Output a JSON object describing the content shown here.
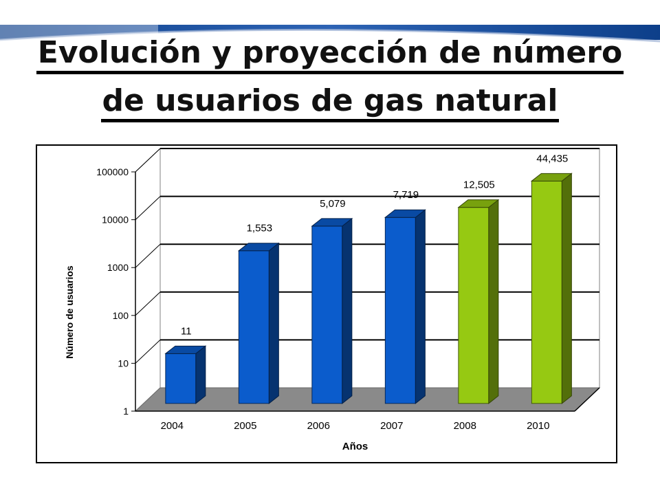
{
  "slide": {
    "title_line1": "Evolución y proyección de número",
    "title_line2": "de usuarios de gas natural"
  },
  "chart_data": {
    "type": "bar",
    "title": "",
    "categories": [
      "2004",
      "2005",
      "2006",
      "2007",
      "2008",
      "2010"
    ],
    "values": [
      11,
      1553,
      5079,
      7719,
      12505,
      44435
    ],
    "value_labels": [
      "11",
      "1,553",
      "5,079",
      "7,719",
      "12,505",
      "44,435"
    ],
    "bar_colors": [
      "#0b5ccc",
      "#0b5ccc",
      "#0b5ccc",
      "#0b5ccc",
      "#96c912",
      "#96c912"
    ],
    "xlabel": "Años",
    "ylabel": "Número de usuarios",
    "yscale": "log",
    "ylim": [
      1,
      100000
    ],
    "yticks": [
      "1",
      "10",
      "100",
      "1000",
      "10000",
      "100000"
    ],
    "grid": true,
    "legend": "none",
    "style": "3d"
  }
}
